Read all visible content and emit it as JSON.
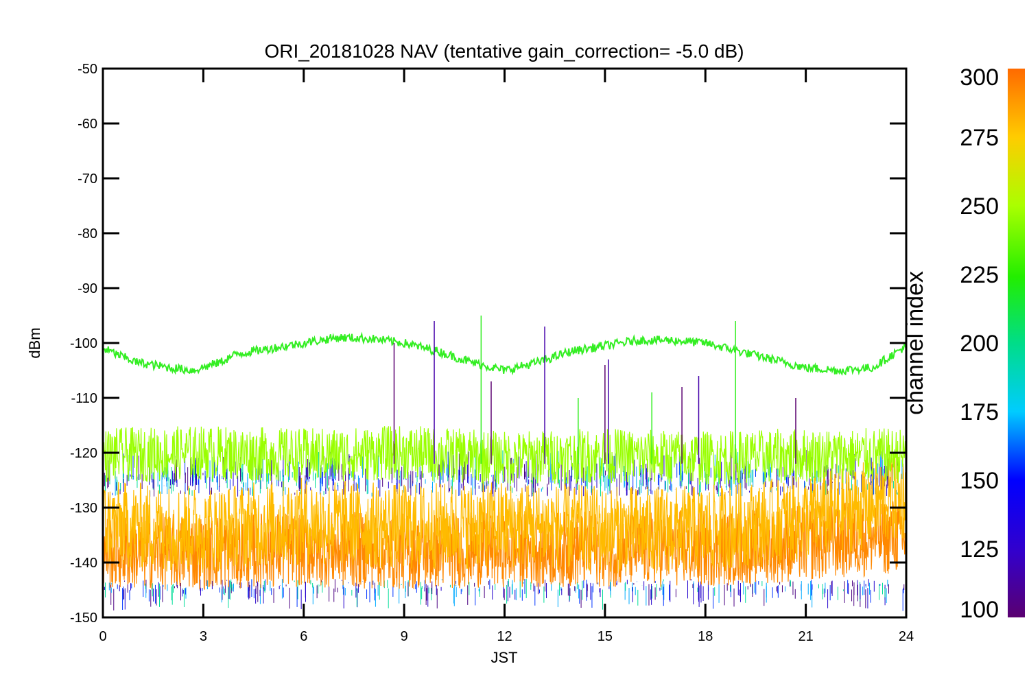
{
  "chart_data": {
    "type": "line",
    "title": "ORI_20181028 NAV (tentative gain_correction= -5.0 dB)",
    "xlabel": "JST",
    "ylabel": "dBm",
    "xlim": [
      0,
      24
    ],
    "ylim": [
      -150,
      -50
    ],
    "x_ticks": [
      0,
      3,
      6,
      9,
      12,
      15,
      18,
      21,
      24
    ],
    "x_tick_labels": [
      "0",
      "3",
      "6",
      "9",
      "12",
      "15",
      "18",
      "21",
      "24"
    ],
    "y_ticks": [
      -50,
      -60,
      -70,
      -80,
      -90,
      -100,
      -110,
      -120,
      -130,
      -140,
      -150
    ],
    "y_tick_labels": [
      "-50",
      "-60",
      "-70",
      "-80",
      "-90",
      "-100",
      "-110",
      "-120",
      "-130",
      "-140",
      "-150"
    ],
    "colorbar": {
      "title": "channel index",
      "range": [
        100,
        300
      ],
      "ticks": [
        100,
        125,
        150,
        175,
        200,
        225,
        250,
        275,
        300
      ],
      "tick_labels": [
        "100",
        "125",
        "150",
        "175",
        "200",
        "225",
        "250",
        "275",
        "300"
      ],
      "colormap": "rainbow"
    },
    "series": [
      {
        "channel_index": 240,
        "color": "#33ee22",
        "x": [
          0,
          1,
          2,
          2.7,
          3.5,
          4,
          5,
          6,
          7,
          8,
          9,
          10,
          11,
          12,
          13,
          14,
          15,
          16,
          17,
          18,
          19,
          20,
          21,
          22,
          23,
          24
        ],
        "y": [
          -101,
          -103.5,
          -104.5,
          -105,
          -103.5,
          -102,
          -101,
          -100,
          -99,
          -99.2,
          -100,
          -101.5,
          -103.5,
          -105,
          -103.5,
          -101.5,
          -100.5,
          -99.5,
          -99.5,
          -100,
          -101.5,
          -103,
          -104.5,
          -105,
          -104.5,
          -100.5
        ]
      },
      {
        "channel_index": 260,
        "color": "#99ff00",
        "x": [
          0,
          3,
          6,
          9,
          12,
          15,
          18,
          21,
          24
        ],
        "y": [
          -120.5,
          -120,
          -120.5,
          -120,
          -121,
          -120.5,
          -121,
          -120.5,
          -120.5
        ]
      },
      {
        "channel_index": 285,
        "color": "#ffbb00",
        "x": [
          0,
          3,
          6,
          9,
          12,
          15,
          18,
          21,
          24
        ],
        "y": [
          -133,
          -134,
          -132.5,
          -133.5,
          -133,
          -134,
          -134,
          -132,
          -128
        ]
      },
      {
        "channel_index": 295,
        "color": "#ff8800",
        "x": [
          0,
          3,
          6,
          9,
          12,
          15,
          18,
          21,
          24
        ],
        "y": [
          -138,
          -138,
          -137.5,
          -138,
          -137.5,
          -137.5,
          -137.5,
          -136.5,
          -135
        ]
      }
    ]
  },
  "colors": {
    "background": "#ffffff",
    "axis": "#000000"
  }
}
